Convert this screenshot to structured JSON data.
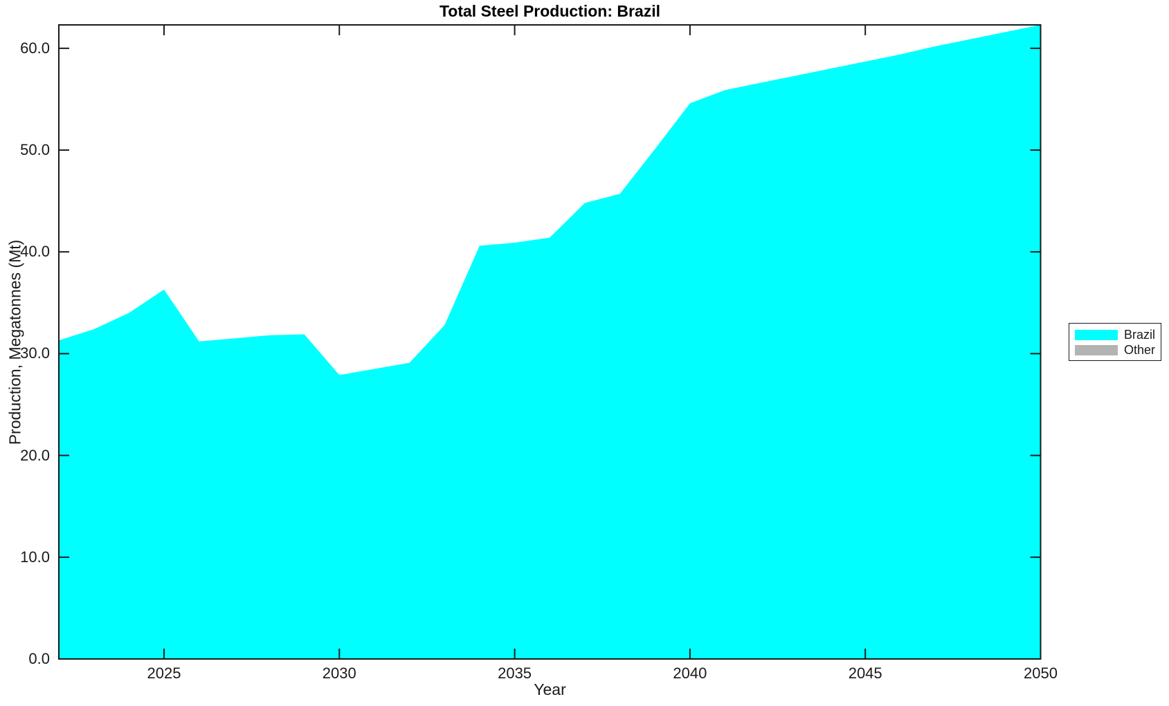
{
  "figure": {
    "title": "Total Steel Production: Brazil",
    "background": "#ffffff",
    "axis_color": "#1a1a1a"
  },
  "chart_data": {
    "type": "area",
    "title": "Total Steel Production: Brazil",
    "xlabel": "Year",
    "ylabel": "Production, Megatonnes (Mt)",
    "xlim": [
      2022,
      2050
    ],
    "ylim": [
      0,
      62.3
    ],
    "grid": false,
    "legend_position": "outside-right",
    "x_ticks": [
      2025,
      2030,
      2035,
      2040,
      2045,
      2050
    ],
    "x_tick_labels": [
      "2025",
      "2030",
      "2035",
      "2040",
      "2045",
      "2050"
    ],
    "y_ticks": [
      0,
      10,
      20,
      30,
      40,
      50,
      60
    ],
    "y_tick_labels": [
      "0.0",
      "10.0",
      "20.0",
      "30.0",
      "40.0",
      "50.0",
      "60.0"
    ],
    "x": [
      2022,
      2023,
      2024,
      2025,
      2026,
      2027,
      2028,
      2029,
      2030,
      2031,
      2032,
      2033,
      2034,
      2035,
      2036,
      2037,
      2038,
      2039,
      2040,
      2041,
      2042,
      2043,
      2044,
      2045,
      2046,
      2047,
      2048,
      2049,
      2050
    ],
    "series": [
      {
        "name": "Brazil",
        "color": "#00ffff",
        "values": [
          31.3,
          32.4,
          34.0,
          36.3,
          31.2,
          31.5,
          31.8,
          31.9,
          27.9,
          28.5,
          29.1,
          32.8,
          40.6,
          40.9,
          41.4,
          44.8,
          45.7,
          50.1,
          54.6,
          55.9,
          56.6,
          57.3,
          58.0,
          58.7,
          59.4,
          60.2,
          60.9,
          61.6,
          62.3
        ]
      },
      {
        "name": "Other",
        "color": "#b3b3b3",
        "values": []
      }
    ]
  }
}
